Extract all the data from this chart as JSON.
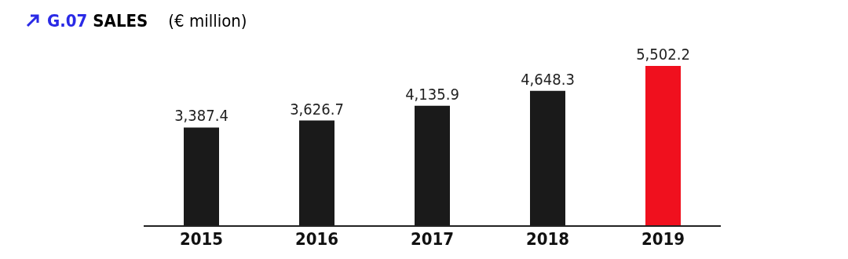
{
  "chart_data": {
    "type": "bar",
    "title": "G.07 SALES",
    "subtitle": "(€ million)",
    "categories": [
      "2015",
      "2016",
      "2017",
      "2018",
      "2019"
    ],
    "values": [
      3387.4,
      3626.7,
      4135.9,
      4648.3,
      5502.2
    ],
    "colors": [
      "#1a1a1a",
      "#1a1a1a",
      "#1a1a1a",
      "#1a1a1a",
      "#f0101e"
    ],
    "value_labels": [
      "3,387.4",
      "3,626.7",
      "4,135.9",
      "4,648.3",
      "5,502.2"
    ],
    "grid": false,
    "legend": false
  }
}
